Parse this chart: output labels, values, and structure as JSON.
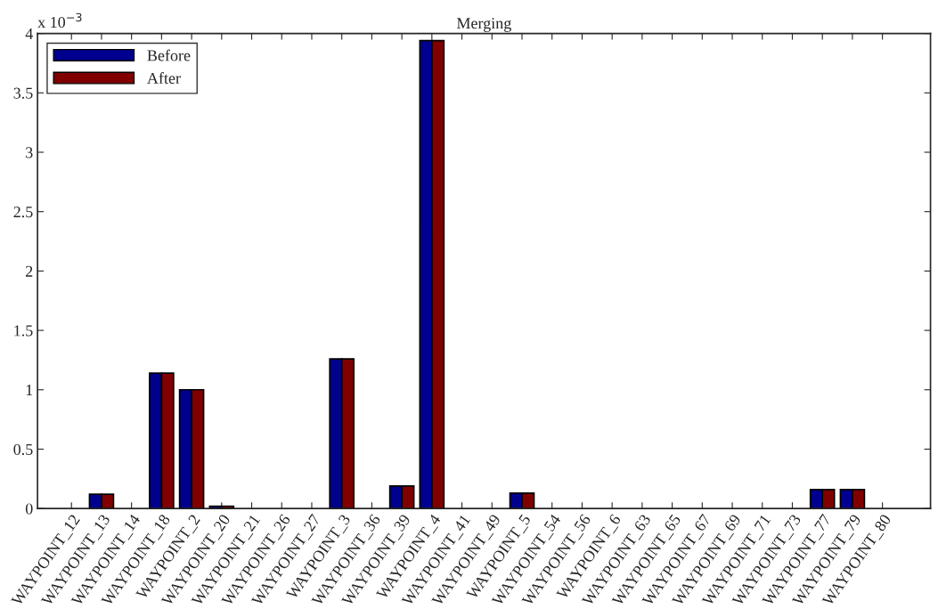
{
  "chart_data": {
    "type": "bar",
    "title": "Merging",
    "categories": [
      "WAYPOINT_12",
      "WAYPOINT_13",
      "WAYPOINT_14",
      "WAYPOINT_18",
      "WAYPOINT_2",
      "WAYPOINT_20",
      "WAYPOINT_21",
      "WAYPOINT_26",
      "WAYPOINT_27",
      "WAYPOINT_3",
      "WAYPOINT_36",
      "WAYPOINT_39",
      "WAYPOINT_4",
      "WAYPOINT_41",
      "WAYPOINT_49",
      "WAYPOINT_5",
      "WAYPOINT_54",
      "WAYPOINT_56",
      "WAYPOINT_6",
      "WAYPOINT_63",
      "WAYPOINT_65",
      "WAYPOINT_67",
      "WAYPOINT_69",
      "WAYPOINT_71",
      "WAYPOINT_73",
      "WAYPOINT_77",
      "WAYPOINT_79",
      "WAYPOINT_80"
    ],
    "series": [
      {
        "name": "Before",
        "color": "#00008f",
        "values": [
          0,
          0.12,
          0,
          1.14,
          1.0,
          0.02,
          0,
          0,
          0,
          1.26,
          0,
          0.19,
          3.94,
          0,
          0,
          0.13,
          0,
          0,
          0,
          0,
          0,
          0,
          0,
          0,
          0,
          0.16,
          0.16,
          0
        ]
      },
      {
        "name": "After",
        "color": "#800000",
        "values": [
          0,
          0.12,
          0,
          1.14,
          1.0,
          0.02,
          0,
          0,
          0,
          1.26,
          0,
          0.19,
          3.94,
          0,
          0,
          0.13,
          0,
          0,
          0,
          0,
          0,
          0,
          0,
          0,
          0,
          0.16,
          0.16,
          0
        ]
      }
    ],
    "ylim": [
      0,
      4
    ],
    "yticks": [
      0,
      0.5,
      1,
      1.5,
      2,
      2.5,
      3,
      3.5,
      4
    ],
    "annotations": [
      "x 10$^{−3}$"
    ],
    "legend": "top left",
    "grid": false
  }
}
